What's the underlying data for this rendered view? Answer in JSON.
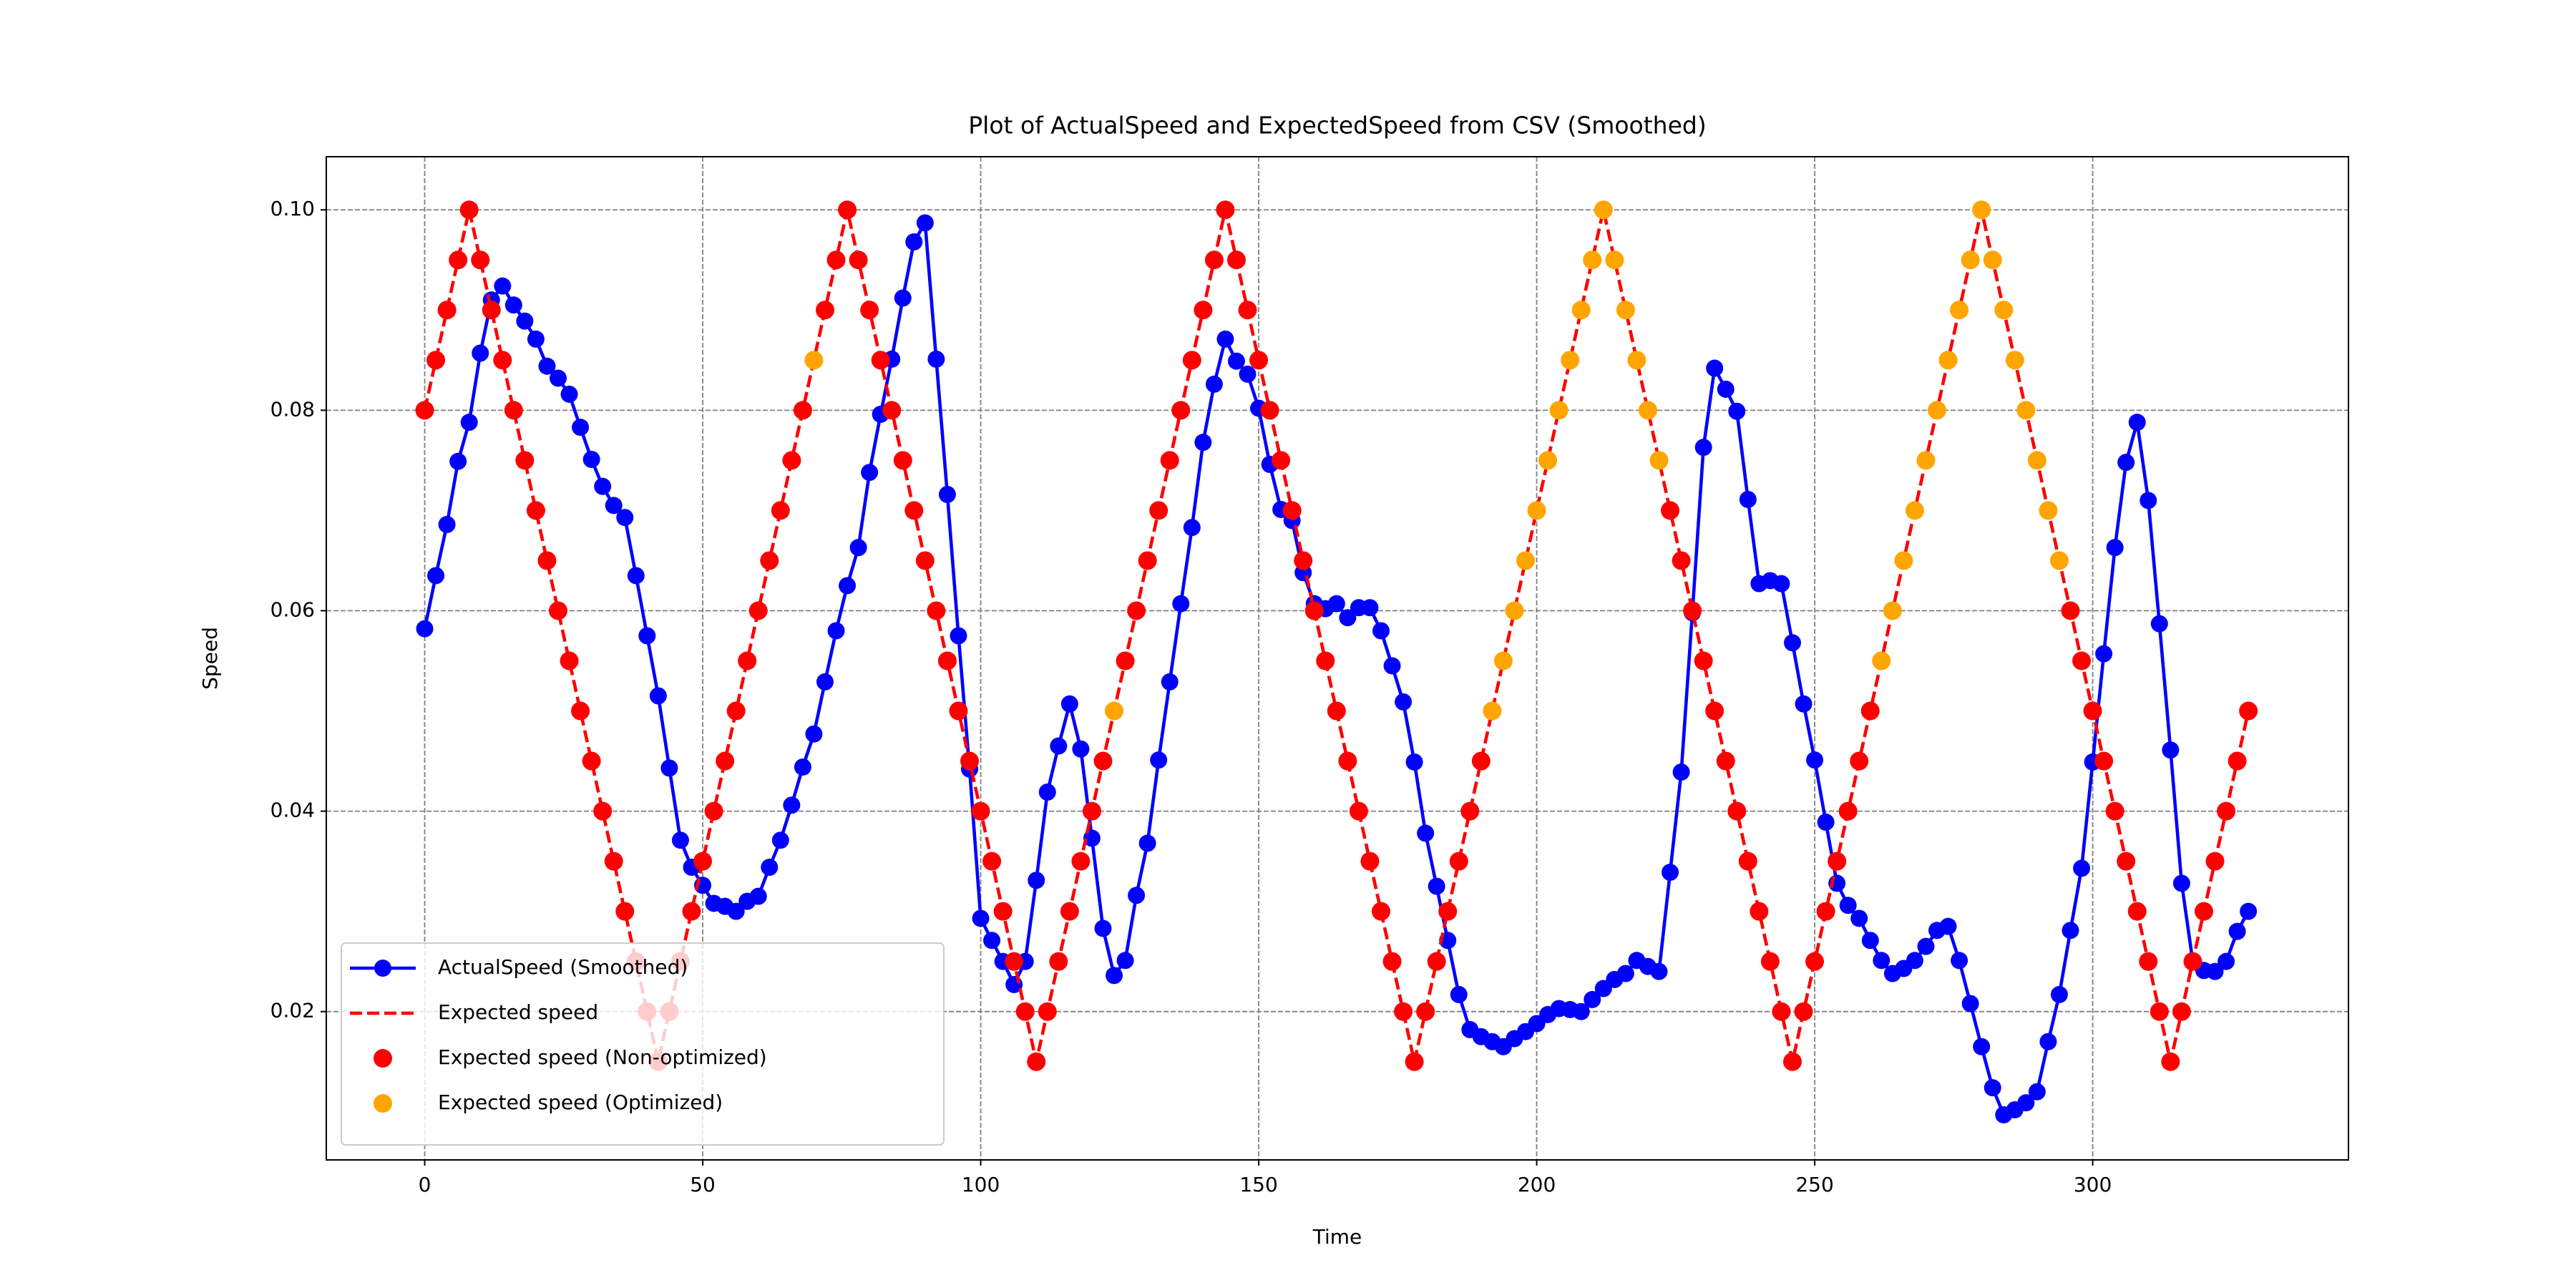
{
  "chart_data": {
    "type": "line",
    "title": "Plot of ActualSpeed and ExpectedSpeed from CSV (Smoothed)",
    "xlabel": "Time",
    "ylabel": "Speed",
    "xlim": [
      -17.7,
      346
    ],
    "ylim": [
      0.0052,
      0.1053
    ],
    "xticks": [
      0,
      50,
      100,
      150,
      200,
      250,
      300
    ],
    "yticks": [
      0.02,
      0.04,
      0.06,
      0.08,
      {
        "value": 0.1,
        "label": "0.10"
      }
    ],
    "grid": true,
    "legend": "lower left",
    "x": [
      0,
      2,
      4,
      6,
      8,
      10,
      12,
      14,
      16,
      18,
      20,
      22,
      24,
      26,
      28,
      30,
      32,
      34,
      36,
      38,
      40,
      42,
      44,
      46,
      48,
      50,
      52,
      54,
      56,
      58,
      60,
      62,
      64,
      66,
      68,
      70,
      72,
      74,
      76,
      78,
      80,
      82,
      84,
      86,
      88,
      90,
      92,
      94,
      96,
      98,
      100,
      102,
      104,
      106,
      108,
      110,
      112,
      114,
      116,
      118,
      120,
      122,
      124,
      126,
      128,
      130,
      132,
      134,
      136,
      138,
      140,
      142,
      144,
      146,
      148,
      150,
      152,
      154,
      156,
      158,
      160,
      162,
      164,
      166,
      168,
      170,
      172,
      174,
      176,
      178,
      180,
      182,
      184,
      186,
      188,
      190,
      192,
      194,
      196,
      198,
      200,
      202,
      204,
      206,
      208,
      210,
      212,
      214,
      216,
      218,
      220,
      222,
      224,
      226,
      228,
      230,
      232,
      234,
      236,
      238,
      240,
      242,
      244,
      246,
      248,
      250,
      252,
      254,
      256,
      258,
      260,
      262,
      264,
      266,
      268,
      270,
      272,
      274,
      276,
      278,
      280,
      282,
      284,
      286,
      288,
      290,
      292,
      294,
      296,
      298,
      300,
      302,
      304,
      306,
      308,
      310,
      312,
      314,
      316,
      318,
      320,
      322,
      324,
      326,
      328
    ],
    "series": [
      {
        "name": "ActualSpeed (Smoothed)",
        "color": "#0000ff",
        "style": "solid",
        "marker": true,
        "values": [
          0.0582,
          0.0635,
          0.0686,
          0.0749,
          0.0788,
          0.0857,
          0.091,
          0.0924,
          0.0905,
          0.0889,
          0.0871,
          0.0844,
          0.0832,
          0.0816,
          0.0783,
          0.0751,
          0.0724,
          0.0705,
          0.0693,
          0.0635,
          0.0575,
          0.0515,
          0.0443,
          0.0371,
          0.0344,
          0.0326,
          0.0308,
          0.0305,
          0.03,
          0.031,
          0.0315,
          0.0344,
          0.0371,
          0.0406,
          0.0444,
          0.0477,
          0.0529,
          0.058,
          0.0625,
          0.0663,
          0.0738,
          0.0796,
          0.0851,
          0.0912,
          0.0968,
          0.0987,
          0.0851,
          0.0716,
          0.0575,
          0.0442,
          0.0293,
          0.0271,
          0.025,
          0.0227,
          0.025,
          0.0331,
          0.0419,
          0.0465,
          0.0507,
          0.0462,
          0.0373,
          0.0283,
          0.0236,
          0.0251,
          0.0316,
          0.0368,
          0.0451,
          0.0529,
          0.0607,
          0.0683,
          0.0768,
          0.0826,
          0.0871,
          0.0849,
          0.0836,
          0.0802,
          0.0746,
          0.0701,
          0.069,
          0.0638,
          0.0607,
          0.0602,
          0.0607,
          0.0593,
          0.0603,
          0.0603,
          0.058,
          0.0545,
          0.0509,
          0.0449,
          0.0378,
          0.0325,
          0.0271,
          0.0217,
          0.0182,
          0.0175,
          0.017,
          0.0165,
          0.0173,
          0.018,
          0.0188,
          0.0197,
          0.0203,
          0.0202,
          0.02,
          0.0212,
          0.0223,
          0.0232,
          0.0238,
          0.0251,
          0.0245,
          0.024,
          0.0339,
          0.0439,
          0.0598,
          0.0763,
          0.0842,
          0.0821,
          0.0799,
          0.0711,
          0.0627,
          0.063,
          0.0627,
          0.0568,
          0.0507,
          0.0451,
          0.0389,
          0.0328,
          0.0306,
          0.0293,
          0.0271,
          0.0251,
          0.0238,
          0.0243,
          0.0251,
          0.0265,
          0.0281,
          0.0285,
          0.0251,
          0.0208,
          0.0165,
          0.0124,
          0.0097,
          0.0102,
          0.0109,
          0.012,
          0.017,
          0.0217,
          0.0281,
          0.0343,
          0.0449,
          0.0557,
          0.0663,
          0.0748,
          0.0788,
          0.071,
          0.0587,
          0.0461,
          0.0328,
          0.025,
          0.0241,
          0.024,
          0.025,
          0.028,
          0.03
        ]
      },
      {
        "name": "Expected speed",
        "color": "#ff0000",
        "style": "dashed",
        "marker": false,
        "values": [
          0.08,
          0.085,
          0.09,
          0.095,
          0.1,
          0.095,
          0.09,
          0.085,
          0.08,
          0.075,
          0.07,
          0.065,
          0.06,
          0.055,
          0.05,
          0.045,
          0.04,
          0.035,
          0.03,
          0.025,
          0.02,
          0.015,
          0.02,
          0.025,
          0.03,
          0.035,
          0.04,
          0.045,
          0.05,
          0.055,
          0.06,
          0.065,
          0.07,
          0.075,
          0.08,
          0.085,
          0.09,
          0.095,
          0.1,
          0.095,
          0.09,
          0.085,
          0.08,
          0.075,
          0.07,
          0.065,
          0.06,
          0.055,
          0.05,
          0.045,
          0.04,
          0.035,
          0.03,
          0.025,
          0.02,
          0.015,
          0.02,
          0.025,
          0.03,
          0.035,
          0.04,
          0.045,
          0.05,
          0.055,
          0.06,
          0.065,
          0.07,
          0.075,
          0.08,
          0.085,
          0.09,
          0.095,
          0.1,
          0.095,
          0.09,
          0.085,
          0.08,
          0.075,
          0.07,
          0.065,
          0.06,
          0.055,
          0.05,
          0.045,
          0.04,
          0.035,
          0.03,
          0.025,
          0.02,
          0.015,
          0.02,
          0.025,
          0.03,
          0.035,
          0.04,
          0.045,
          0.05,
          0.055,
          0.06,
          0.065,
          0.07,
          0.075,
          0.08,
          0.085,
          0.09,
          0.095,
          0.1,
          0.095,
          0.09,
          0.085,
          0.08,
          0.075,
          0.07,
          0.065,
          0.06,
          0.055,
          0.05,
          0.045,
          0.04,
          0.035,
          0.03,
          0.025,
          0.02,
          0.015,
          0.02,
          0.025,
          0.03,
          0.035,
          0.04,
          0.045,
          0.05,
          0.055,
          0.06,
          0.065,
          0.07,
          0.075,
          0.08,
          0.085,
          0.09,
          0.095,
          0.1,
          0.095,
          0.09,
          0.085,
          0.08,
          0.075,
          0.07,
          0.065,
          0.06,
          0.055,
          0.05,
          0.045,
          0.04,
          0.035,
          0.03,
          0.025,
          0.02,
          0.015,
          0.02,
          0.025,
          0.03,
          0.035,
          0.04,
          0.045,
          0.05
        ]
      },
      {
        "name": "Expected speed (Non-optimized)",
        "type": "scatter",
        "color": "#ff0000",
        "x": [
          0,
          2,
          4,
          6,
          8,
          10,
          12,
          14,
          16,
          18,
          20,
          22,
          24,
          26,
          28,
          30,
          32,
          34,
          36,
          38,
          40,
          42,
          44,
          46,
          48,
          50,
          52,
          54,
          56,
          58,
          60,
          62,
          64,
          66,
          68,
          72,
          74,
          76,
          78,
          80,
          82,
          84,
          86,
          88,
          90,
          92,
          94,
          96,
          98,
          100,
          102,
          104,
          106,
          108,
          110,
          112,
          114,
          116,
          118,
          120,
          122,
          126,
          128,
          130,
          132,
          134,
          136,
          138,
          140,
          142,
          144,
          146,
          148,
          150,
          152,
          154,
          156,
          158,
          160,
          162,
          164,
          166,
          168,
          170,
          172,
          174,
          176,
          178,
          180,
          182,
          184,
          186,
          188,
          190,
          224,
          226,
          228,
          230,
          232,
          234,
          236,
          238,
          240,
          242,
          244,
          246,
          248,
          250,
          252,
          254,
          256,
          258,
          260,
          296,
          298,
          300,
          302,
          304,
          306,
          308,
          310,
          312,
          314,
          316,
          318,
          320,
          322,
          324,
          326,
          328
        ],
        "values": [
          0.08,
          0.085,
          0.09,
          0.095,
          0.1,
          0.095,
          0.09,
          0.085,
          0.08,
          0.075,
          0.07,
          0.065,
          0.06,
          0.055,
          0.05,
          0.045,
          0.04,
          0.035,
          0.03,
          0.025,
          0.02,
          0.015,
          0.02,
          0.025,
          0.03,
          0.035,
          0.04,
          0.045,
          0.05,
          0.055,
          0.06,
          0.065,
          0.07,
          0.075,
          0.08,
          0.09,
          0.095,
          0.1,
          0.095,
          0.09,
          0.085,
          0.08,
          0.075,
          0.07,
          0.065,
          0.06,
          0.055,
          0.05,
          0.045,
          0.04,
          0.035,
          0.03,
          0.025,
          0.02,
          0.015,
          0.02,
          0.025,
          0.03,
          0.035,
          0.04,
          0.045,
          0.055,
          0.06,
          0.065,
          0.07,
          0.075,
          0.08,
          0.085,
          0.09,
          0.095,
          0.1,
          0.095,
          0.09,
          0.085,
          0.08,
          0.075,
          0.07,
          0.065,
          0.06,
          0.055,
          0.05,
          0.045,
          0.04,
          0.035,
          0.03,
          0.025,
          0.02,
          0.015,
          0.02,
          0.025,
          0.03,
          0.035,
          0.04,
          0.045,
          0.07,
          0.065,
          0.06,
          0.055,
          0.05,
          0.045,
          0.04,
          0.035,
          0.03,
          0.025,
          0.02,
          0.015,
          0.02,
          0.025,
          0.03,
          0.035,
          0.04,
          0.045,
          0.05,
          0.06,
          0.055,
          0.05,
          0.045,
          0.04,
          0.035,
          0.03,
          0.025,
          0.02,
          0.015,
          0.02,
          0.025,
          0.03,
          0.035,
          0.04,
          0.045,
          0.05
        ]
      },
      {
        "name": "Expected speed (Optimized)",
        "type": "scatter",
        "color": "#ffa500",
        "x": [
          70,
          124,
          192,
          194,
          196,
          198,
          200,
          202,
          204,
          206,
          208,
          210,
          212,
          214,
          216,
          218,
          220,
          222,
          262,
          264,
          266,
          268,
          270,
          272,
          274,
          276,
          278,
          280,
          282,
          284,
          286,
          288,
          290,
          292,
          294
        ],
        "values": [
          0.085,
          0.05,
          0.05,
          0.055,
          0.06,
          0.065,
          0.07,
          0.075,
          0.08,
          0.085,
          0.09,
          0.095,
          0.1,
          0.095,
          0.09,
          0.085,
          0.08,
          0.075,
          0.055,
          0.06,
          0.065,
          0.07,
          0.075,
          0.08,
          0.085,
          0.09,
          0.095,
          0.1,
          0.095,
          0.09,
          0.085,
          0.08,
          0.075,
          0.07,
          0.065
        ]
      }
    ]
  }
}
